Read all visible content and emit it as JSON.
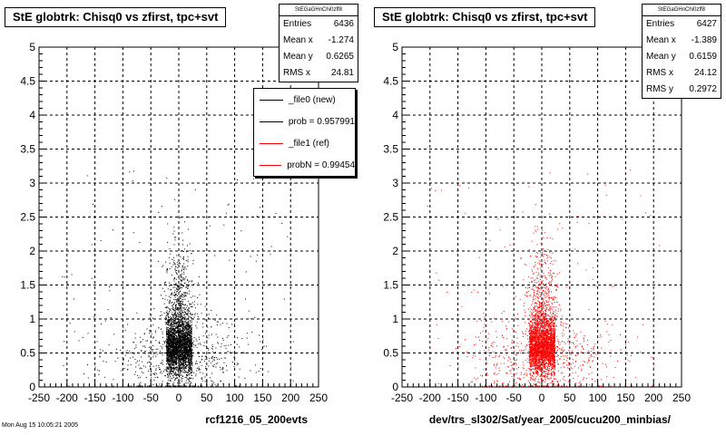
{
  "chart_data": [
    {
      "type": "scatter",
      "title": "StE globtrk: Chisq0 vs zfirst, tpc+svt",
      "xlabel": "rcf1216_05_200evts",
      "ylabel": "",
      "xlim": [
        -250,
        250
      ],
      "ylim": [
        0,
        5
      ],
      "x_ticks": [
        "-250",
        "-200",
        "-150",
        "-100",
        "-50",
        "0",
        "50",
        "100",
        "150",
        "200",
        "250"
      ],
      "y_ticks": [
        "0",
        "0.5",
        "1",
        "1.5",
        "2",
        "2.5",
        "3",
        "3.5",
        "4",
        "4.5",
        "5"
      ],
      "grid": true,
      "marker_color": "#000000",
      "series": [
        {
          "name": "_file0 (new)",
          "approx_points": [
            [
              -10,
              0.5
            ],
            [
              0,
              0.55
            ],
            [
              10,
              0.45
            ],
            [
              -20,
              0.6
            ],
            [
              20,
              0.4
            ],
            [
              -5,
              0.8
            ],
            [
              5,
              0.3
            ],
            [
              15,
              0.9
            ],
            [
              -15,
              0.2
            ],
            [
              0,
              1.2
            ],
            [
              -8,
              1.6
            ],
            [
              8,
              2.0
            ],
            [
              -30,
              0.4
            ],
            [
              35,
              0.5
            ],
            [
              -60,
              0.3
            ],
            [
              60,
              0.6
            ],
            [
              -100,
              0.4
            ],
            [
              100,
              0.5
            ],
            [
              -150,
              0.3
            ],
            [
              150,
              0.7
            ],
            [
              120,
              1.7
            ],
            [
              -120,
              1.0
            ],
            [
              -170,
              0.2
            ],
            [
              200,
              0.3
            ]
          ]
        }
      ],
      "stats": {
        "name": "StEGaGHnChi0zff8",
        "entries_label": "Entries",
        "entries": "6436",
        "mean_x_label": "Mean x",
        "mean_x": "-1.274",
        "mean_y_label": "Mean y",
        "mean_y": "0.6265",
        "rms_x_label": "RMS x",
        "rms_x": "24.81"
      },
      "legend": [
        {
          "label": "_file0 (new)",
          "color": "#000000"
        },
        {
          "label": "prob = 0.957991",
          "color": "#000000"
        },
        {
          "label": "_file1 (ref)",
          "color": "#ff0000"
        },
        {
          "label": "probN = 0.99454",
          "color": "#ff0000"
        }
      ],
      "legend_placement": "top-right"
    },
    {
      "type": "scatter",
      "title": "StE globtrk: Chisq0 vs zfirst, tpc+svt",
      "xlabel": "dev/trs_sl302/Sat/year_2005/cucu200_minbias/",
      "ylabel": "",
      "xlim": [
        -250,
        250
      ],
      "ylim": [
        0,
        5
      ],
      "x_ticks": [
        "-250",
        "-200",
        "-150",
        "-100",
        "-50",
        "0",
        "50",
        "100",
        "150",
        "200",
        "250"
      ],
      "y_ticks": [
        "0",
        "0.5",
        "1",
        "1.5",
        "2",
        "2.5",
        "3",
        "3.5",
        "4",
        "4.5",
        "5"
      ],
      "grid": true,
      "marker_color": "#ff0000",
      "series": [
        {
          "name": "_file1 (ref)",
          "approx_points": [
            [
              -10,
              0.5
            ],
            [
              0,
              0.55
            ],
            [
              10,
              0.45
            ],
            [
              -20,
              0.6
            ],
            [
              20,
              0.4
            ],
            [
              -5,
              0.8
            ],
            [
              5,
              0.3
            ],
            [
              15,
              0.9
            ],
            [
              -15,
              0.2
            ],
            [
              0,
              1.2
            ],
            [
              -8,
              1.6
            ],
            [
              8,
              2.0
            ],
            [
              -30,
              0.4
            ],
            [
              35,
              0.5
            ],
            [
              -60,
              0.3
            ],
            [
              60,
              0.6
            ],
            [
              -100,
              0.4
            ],
            [
              100,
              0.5
            ],
            [
              -150,
              0.3
            ],
            [
              150,
              0.7
            ],
            [
              -170,
              1.4
            ],
            [
              -120,
              1.0
            ],
            [
              -180,
              2.9
            ],
            [
              200,
              0.3
            ]
          ]
        }
      ],
      "stats": {
        "name": "StEGaGHnChi0zff8",
        "entries_label": "Entries",
        "entries": "6427",
        "mean_x_label": "Mean x",
        "mean_x": "-1.389",
        "mean_y_label": "Mean y",
        "mean_y": "0.6159",
        "rms_x_label": "RMS x",
        "rms_x": "24.12",
        "rms_y_label": "RMS y",
        "rms_y": "0.2972"
      }
    }
  ],
  "footer": "Mon Aug 15 10:05:21 2005"
}
